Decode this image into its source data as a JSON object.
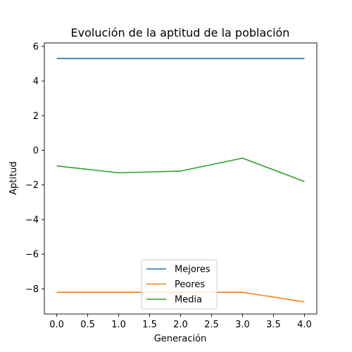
{
  "chart_data": {
    "type": "line",
    "title": "Evolución de la aptitud de la población",
    "xlabel": "Generación",
    "ylabel": "Aptitud",
    "x": [
      0,
      1,
      2,
      3,
      4
    ],
    "xlim": [
      -0.2,
      4.2
    ],
    "ylim": [
      -9.45,
      6.2
    ],
    "xticks": [
      0.0,
      0.5,
      1.0,
      1.5,
      2.0,
      2.5,
      3.0,
      3.5,
      4.0
    ],
    "xtick_labels": [
      "0.0",
      "0.5",
      "1.0",
      "1.5",
      "2.0",
      "2.5",
      "3.0",
      "3.5",
      "4.0"
    ],
    "yticks": [
      -8,
      -6,
      -4,
      -2,
      0,
      2,
      4,
      6
    ],
    "ytick_labels": [
      "−8",
      "−6",
      "−4",
      "−2",
      "0",
      "2",
      "4",
      "6"
    ],
    "grid": false,
    "legend_position": "lower center",
    "series": [
      {
        "name": "Mejores",
        "color": "#1f77b4",
        "values": [
          5.3,
          5.3,
          5.3,
          5.3,
          5.3
        ]
      },
      {
        "name": "Peores",
        "color": "#ff7f0e",
        "values": [
          -8.2,
          -8.2,
          -8.2,
          -8.2,
          -8.75
        ]
      },
      {
        "name": "Media",
        "color": "#2ca02c",
        "values": [
          -0.9,
          -1.3,
          -1.2,
          -0.45,
          -1.8
        ]
      }
    ]
  }
}
